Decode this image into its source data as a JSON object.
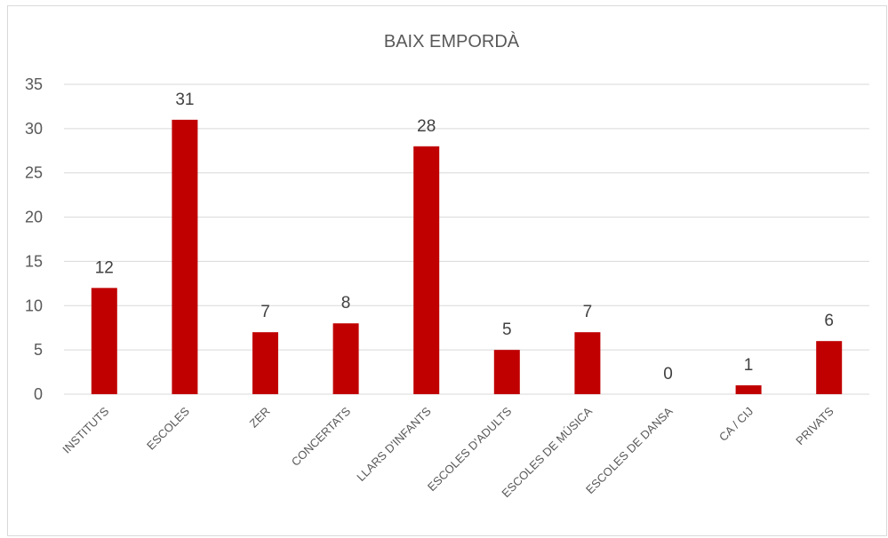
{
  "chart_data": {
    "type": "bar",
    "title": "BAIX EMPORDÀ",
    "categories": [
      "INSTITUTS",
      "ESCOLES",
      "ZER",
      "CONCERTATS",
      "LLARS D'INFANTS",
      "ESCOLES D'ADULTS",
      "ESCOLES DE MÚSICA",
      "ESCOLES DE DANSA",
      "CA / CIJ",
      "PRIVATS"
    ],
    "values": [
      12,
      31,
      7,
      8,
      28,
      5,
      7,
      0,
      1,
      6
    ],
    "data_labels": [
      "12",
      "31",
      "7",
      "8",
      "28",
      "5",
      "7",
      "0",
      "1",
      "6"
    ],
    "yticks": [
      "0",
      "5",
      "10",
      "15",
      "20",
      "25",
      "30",
      "35"
    ],
    "ylim": [
      0,
      35
    ],
    "grid": true,
    "legend": false,
    "bar_color": "#c00000",
    "xlabel": "",
    "ylabel": ""
  }
}
